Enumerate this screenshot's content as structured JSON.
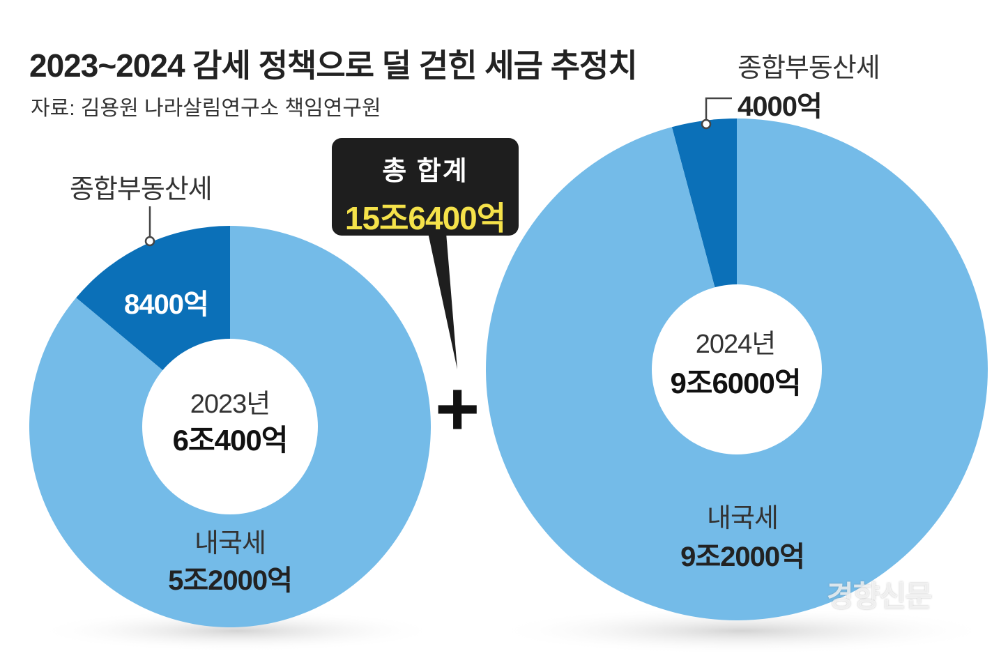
{
  "title": "2023~2024 감세 정책으로 덜 걷힌 세금 추정치",
  "source": "자료: 김용원 나라살림연구소 책임연구원",
  "callout": {
    "heading": "총 합계",
    "total": "15조6400억"
  },
  "plus_sign": "+",
  "watermark": "경향신문",
  "colors": {
    "light": "#74bbe8",
    "dark": "#0b70b8",
    "callout_bg": "#1e1e1e",
    "callout_text": "#f5e24a"
  },
  "chart_data": [
    {
      "type": "pie",
      "title": "2023년",
      "total_label": "6조400억",
      "unit": "억원",
      "slices": [
        {
          "name": "종합부동산세",
          "value": 8400,
          "label": "8400억"
        },
        {
          "name": "내국세",
          "value": 52000,
          "label": "5조2000억"
        }
      ]
    },
    {
      "type": "pie",
      "title": "2024년",
      "total_label": "9조6000억",
      "unit": "억원",
      "slices": [
        {
          "name": "종합부동산세",
          "value": 4000,
          "label": "4000억"
        },
        {
          "name": "내국세",
          "value": 92000,
          "label": "9조2000억"
        }
      ]
    }
  ]
}
